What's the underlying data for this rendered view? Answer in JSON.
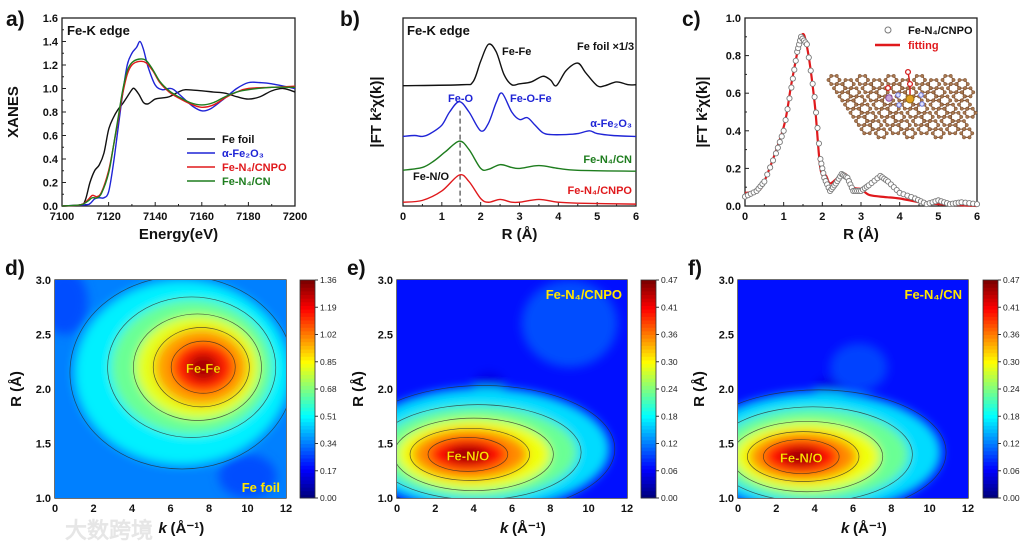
{
  "watermark": "大数跨境",
  "colors": {
    "black": "#111111",
    "blue": "#1f24d6",
    "red": "#e0191c",
    "green": "#1e7d1e",
    "grey": "#7a7a7a",
    "label_yellow": "#ffe600"
  },
  "chart_data": [
    {
      "panel": "a)",
      "type": "line",
      "title": "Fe-K edge",
      "xlabel": "Energy(eV)",
      "ylabel": "XANES",
      "xlim": [
        7100,
        7200
      ],
      "ylim": [
        0,
        1.6
      ],
      "xticks": [
        "7100",
        "7120",
        "7140",
        "7160",
        "7180",
        "7200"
      ],
      "yticks": [
        "0.0",
        "0.2",
        "0.4",
        "0.6",
        "0.8",
        "1.0",
        "1.2",
        "1.4",
        "1.6"
      ],
      "legend_position": "bottom-right",
      "series": [
        {
          "name": "Fe foil",
          "color": "#111111",
          "x": [
            7100,
            7108,
            7110,
            7112,
            7114,
            7116,
            7118,
            7120,
            7122,
            7124,
            7126,
            7128,
            7130,
            7131,
            7133,
            7135,
            7137,
            7140,
            7143,
            7146,
            7150,
            7153,
            7160,
            7165,
            7170,
            7175,
            7180,
            7185,
            7190,
            7195,
            7200
          ],
          "y": [
            0,
            0.01,
            0.05,
            0.2,
            0.3,
            0.35,
            0.45,
            0.65,
            0.75,
            0.82,
            0.87,
            0.93,
            0.99,
            1.0,
            0.95,
            0.88,
            0.87,
            0.91,
            0.92,
            0.93,
            0.97,
            0.99,
            0.98,
            0.97,
            0.96,
            0.93,
            0.91,
            0.93,
            0.98,
            1.0,
            0.97
          ]
        },
        {
          "name": "α-Fe₂O₃",
          "color": "#1f24d6",
          "x": [
            7100,
            7110,
            7112,
            7114,
            7116,
            7118,
            7120,
            7122,
            7124,
            7126,
            7128,
            7130,
            7132,
            7133.5,
            7135,
            7137,
            7140,
            7143,
            7146,
            7148,
            7152,
            7156,
            7160,
            7164,
            7170,
            7175,
            7180,
            7185,
            7190,
            7200
          ],
          "y": [
            0,
            0.01,
            0.02,
            0.06,
            0.07,
            0.07,
            0.12,
            0.35,
            0.65,
            0.95,
            1.2,
            1.3,
            1.35,
            1.4,
            1.33,
            1.18,
            1.03,
            0.99,
            1.0,
            0.99,
            0.92,
            0.85,
            0.81,
            0.83,
            0.92,
            1.0,
            1.05,
            1.05,
            1.04,
            1.0
          ]
        },
        {
          "name": "Fe-N₄/CNPO",
          "color": "#e0191c",
          "x": [
            7100,
            7108,
            7111,
            7113,
            7115,
            7117,
            7120,
            7122,
            7124,
            7126,
            7128,
            7130,
            7133,
            7136,
            7139,
            7142,
            7146,
            7150,
            7155,
            7160,
            7165,
            7170,
            7175,
            7180,
            7190,
            7200
          ],
          "y": [
            0,
            0.01,
            0.05,
            0.09,
            0.08,
            0.12,
            0.3,
            0.5,
            0.72,
            0.95,
            1.12,
            1.2,
            1.23,
            1.22,
            1.15,
            1.05,
            0.97,
            0.92,
            0.87,
            0.84,
            0.86,
            0.92,
            0.97,
            1.0,
            1.01,
            1.02
          ]
        },
        {
          "name": "Fe-N₄/CN",
          "color": "#1e7d1e",
          "x": [
            7100,
            7108,
            7111,
            7113,
            7115,
            7117,
            7120,
            7122,
            7124,
            7126,
            7128,
            7130,
            7133,
            7136,
            7139,
            7142,
            7146,
            7150,
            7155,
            7160,
            7165,
            7170,
            7175,
            7180,
            7190,
            7200
          ],
          "y": [
            0,
            0.01,
            0.04,
            0.07,
            0.07,
            0.11,
            0.28,
            0.5,
            0.74,
            0.98,
            1.15,
            1.22,
            1.25,
            1.24,
            1.16,
            1.06,
            0.98,
            0.93,
            0.88,
            0.86,
            0.88,
            0.93,
            0.97,
            0.99,
            1.01,
            1.01
          ]
        }
      ]
    },
    {
      "panel": "b)",
      "type": "line",
      "title": "Fe-K edge",
      "xlabel": "R (Å)",
      "ylabel": "|FT k²χ(k)|",
      "xlim": [
        0,
        6
      ],
      "ylim": [
        0,
        1
      ],
      "xticks": [
        "0",
        "1",
        "2",
        "3",
        "4",
        "5",
        "6"
      ],
      "annotations": {
        "fe_fe": "Fe-Fe",
        "foil_scale": "Fe foil ×1/3",
        "fe_o": "Fe-O",
        "fe_o_fe": "Fe-O-Fe",
        "fe_n_o": "Fe-N/O"
      },
      "dashed_line_R": 1.47,
      "series": [
        {
          "name": "Fe foil",
          "color": "#111111",
          "x": [
            0,
            1.5,
            1.8,
            2.0,
            2.2,
            2.4,
            2.6,
            2.8,
            3.0,
            3.3,
            3.6,
            3.8,
            3.95,
            4.2,
            4.5,
            4.7,
            5.0,
            5.2,
            5.5,
            5.8,
            6
          ],
          "y": [
            0.64,
            0.645,
            0.66,
            0.77,
            0.86,
            0.82,
            0.7,
            0.645,
            0.65,
            0.66,
            0.69,
            0.67,
            0.64,
            0.72,
            0.76,
            0.71,
            0.64,
            0.64,
            0.66,
            0.645,
            0.645
          ]
        },
        {
          "name": "α-Fe₂O₃",
          "color": "#1f24d6",
          "x": [
            0,
            0.3,
            0.5,
            0.7,
            1.0,
            1.2,
            1.45,
            1.7,
            2.0,
            2.2,
            2.4,
            2.55,
            2.8,
            3.0,
            3.2,
            3.4,
            3.6,
            3.8,
            4.2,
            4.5,
            4.8,
            5.0,
            5.4,
            6
          ],
          "y": [
            0.37,
            0.375,
            0.37,
            0.385,
            0.43,
            0.5,
            0.555,
            0.5,
            0.4,
            0.44,
            0.55,
            0.6,
            0.5,
            0.46,
            0.47,
            0.43,
            0.39,
            0.38,
            0.38,
            0.385,
            0.4,
            0.385,
            0.375,
            0.37
          ]
        },
        {
          "name": "Fe-N₄/CN",
          "color": "#1e7d1e",
          "x": [
            0,
            0.5,
            0.8,
            1.1,
            1.45,
            1.7,
            2.0,
            2.2,
            2.5,
            2.8,
            3.0,
            3.5,
            4.0,
            4.5,
            6
          ],
          "y": [
            0.19,
            0.205,
            0.24,
            0.29,
            0.345,
            0.3,
            0.2,
            0.195,
            0.22,
            0.205,
            0.2,
            0.215,
            0.2,
            0.19,
            0.185
          ]
        },
        {
          "name": "Fe-N₄/CNPO",
          "color": "#e0191c",
          "x": [
            0,
            0.5,
            1.0,
            1.45,
            1.7,
            2.0,
            2.2,
            2.5,
            2.8,
            3.0,
            3.5,
            4.0,
            4.5,
            6
          ],
          "y": [
            0.02,
            0.03,
            0.08,
            0.165,
            0.13,
            0.04,
            0.02,
            0.035,
            0.02,
            0.02,
            0.035,
            0.02,
            0.015,
            0.01
          ]
        }
      ]
    },
    {
      "panel": "c)",
      "type": "line",
      "xlabel": "R (Å)",
      "ylabel": "|FT k²χ(k)|",
      "xlim": [
        0,
        6
      ],
      "ylim": [
        0,
        1.0
      ],
      "xticks": [
        "0",
        "1",
        "2",
        "3",
        "4",
        "5",
        "6"
      ],
      "yticks": [
        "0.0",
        "0.2",
        "0.4",
        "0.6",
        "0.8",
        "1.0"
      ],
      "legend_position": "top-right",
      "series": [
        {
          "name": "Fe-N₄/CNPO",
          "style": "open-circles",
          "color": "#7a7a7a",
          "x": [
            0,
            0.3,
            0.5,
            0.8,
            1.0,
            1.2,
            1.35,
            1.45,
            1.6,
            1.8,
            1.95,
            2.05,
            2.2,
            2.35,
            2.5,
            2.65,
            2.8,
            3.0,
            3.2,
            3.5,
            3.7,
            4.0,
            4.4,
            4.7,
            5.0,
            5.3,
            5.6,
            6
          ],
          "y": [
            0.05,
            0.08,
            0.13,
            0.28,
            0.4,
            0.63,
            0.82,
            0.9,
            0.86,
            0.58,
            0.25,
            0.15,
            0.08,
            0.12,
            0.17,
            0.15,
            0.08,
            0.08,
            0.11,
            0.16,
            0.13,
            0.07,
            0.04,
            0.01,
            0.03,
            0.01,
            0.02,
            0.01
          ]
        },
        {
          "name": "fitting",
          "style": "line",
          "color": "#e0191c",
          "x": [
            0,
            0.3,
            0.5,
            1.0,
            1.2,
            1.45,
            1.6,
            1.8,
            1.95,
            2.1,
            2.2,
            2.4,
            2.6,
            2.8,
            3.0,
            3.2,
            3.5,
            4.0,
            4.5,
            5.0,
            5.5,
            6
          ],
          "y": [
            0.07,
            0.08,
            0.13,
            0.42,
            0.65,
            0.9,
            0.85,
            0.55,
            0.2,
            0.16,
            0.12,
            0.15,
            0.17,
            0.1,
            0.09,
            0.06,
            0.05,
            0.04,
            0.02,
            0.01,
            0.005,
            0
          ]
        }
      ]
    },
    {
      "panel": "d)",
      "type": "heatmap",
      "xlabel": "k (Å⁻¹)",
      "xlabel_k": "k",
      "xlabel_unit": " (Å⁻¹)",
      "ylabel": "R (Å)",
      "xlim": [
        0,
        12
      ],
      "ylim": [
        1.0,
        3.0
      ],
      "xticks": [
        "0",
        "2",
        "4",
        "6",
        "8",
        "10",
        "12"
      ],
      "yticks": [
        "1.0",
        "1.5",
        "2.0",
        "2.5",
        "3.0"
      ],
      "colorbar": [
        "0.00",
        "0.17",
        "0.34",
        "0.51",
        "0.68",
        "0.85",
        "1.02",
        "1.19",
        "1.36"
      ],
      "zmax": 1.36,
      "peak": {
        "k": 7.7,
        "R": 2.2,
        "label": "Fe-Fe"
      },
      "sample": "Fe foil"
    },
    {
      "panel": "e)",
      "type": "heatmap",
      "xlabel_k": "k",
      "xlabel_unit": " (Å⁻¹)",
      "ylabel": "R (Å)",
      "xlim": [
        0,
        12
      ],
      "ylim": [
        1.0,
        3.0
      ],
      "xticks": [
        "0",
        "2",
        "4",
        "6",
        "8",
        "10",
        "12"
      ],
      "yticks": [
        "1.0",
        "1.5",
        "2.0",
        "2.5",
        "3.0"
      ],
      "colorbar": [
        "0.00",
        "0.06",
        "0.12",
        "0.18",
        "0.24",
        "0.30",
        "0.36",
        "0.41",
        "0.47"
      ],
      "zmax": 0.47,
      "peak": {
        "k": 3.7,
        "R": 1.4,
        "label": "Fe-N/O"
      },
      "sample": "Fe-N₄/CNPO"
    },
    {
      "panel": "f)",
      "type": "heatmap",
      "xlabel_k": "k",
      "xlabel_unit": " (Å⁻¹)",
      "ylabel": "R (Å)",
      "xlim": [
        0,
        12
      ],
      "ylim": [
        1.0,
        3.0
      ],
      "xticks": [
        "0",
        "2",
        "4",
        "6",
        "8",
        "10",
        "12"
      ],
      "yticks": [
        "1.0",
        "1.5",
        "2.0",
        "2.5",
        "3.0"
      ],
      "colorbar": [
        "0.00",
        "0.06",
        "0.12",
        "0.18",
        "0.24",
        "0.30",
        "0.36",
        "0.41",
        "0.47"
      ],
      "zmax": 0.47,
      "peak": {
        "k": 3.3,
        "R": 1.38,
        "label": "Fe-N/O"
      },
      "sample": "Fe-N₄/CN"
    }
  ]
}
